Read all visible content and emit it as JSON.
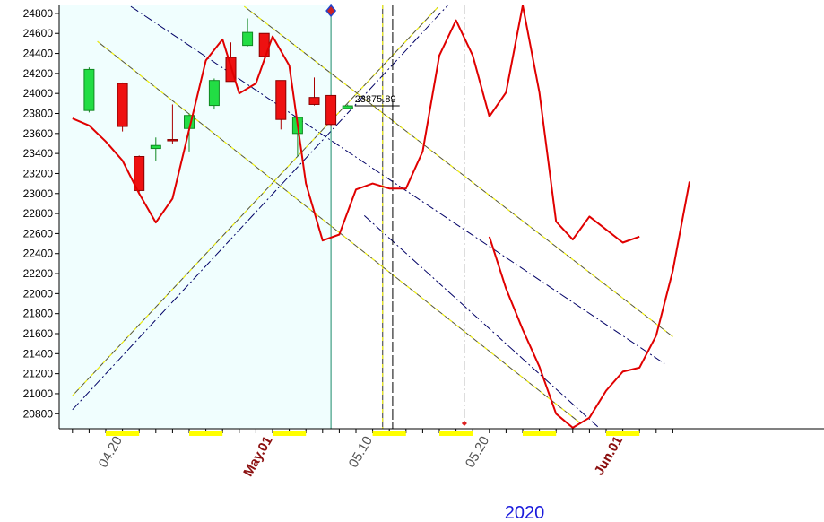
{
  "chart_data": {
    "type": "candlestick",
    "year_label": "2020",
    "last_price_label": "23875.89",
    "ylim": [
      20650,
      24880
    ],
    "y_ticks": [
      24800,
      24600,
      24400,
      24200,
      24000,
      23800,
      23600,
      23400,
      23200,
      23000,
      22800,
      22600,
      22400,
      22200,
      22000,
      21800,
      21600,
      21400,
      21200,
      21000,
      20800
    ],
    "x_ticks": [
      {
        "label": "04.20",
        "i": 1,
        "style": "normal"
      },
      {
        "label": "May.01",
        "i": 10,
        "style": "month"
      },
      {
        "label": "05.10",
        "i": 16,
        "style": "normal"
      },
      {
        "label": "05.20",
        "i": 23,
        "style": "normal"
      },
      {
        "label": "Jun.01",
        "i": 31,
        "style": "month"
      }
    ],
    "highlighted_days": [
      1,
      6,
      11,
      17,
      21,
      26,
      31
    ],
    "shaded_region_end_i": 13.5,
    "candles": [
      {
        "i": -1,
        "open": 23830,
        "high": 24260,
        "low": 23810,
        "close": 24240
      },
      {
        "i": 1,
        "open": 24100,
        "high": 24110,
        "low": 23620,
        "close": 23670
      },
      {
        "i": 2,
        "open": 23370,
        "high": 23380,
        "low": 23010,
        "close": 23030
      },
      {
        "i": 3,
        "open": 23450,
        "high": 23560,
        "low": 23330,
        "close": 23480
      },
      {
        "i": 4,
        "open": 23540,
        "high": 23890,
        "low": 23500,
        "close": 23530
      },
      {
        "i": 5,
        "open": 23650,
        "high": 23800,
        "low": 23420,
        "close": 23780
      },
      {
        "i": 6.5,
        "open": 23880,
        "high": 24150,
        "low": 23840,
        "close": 24130
      },
      {
        "i": 7.5,
        "open": 24360,
        "high": 24510,
        "low": 24120,
        "close": 24120
      },
      {
        "i": 8.5,
        "open": 24480,
        "high": 24750,
        "low": 24470,
        "close": 24610
      },
      {
        "i": 9.5,
        "open": 24600,
        "high": 24600,
        "low": 24360,
        "close": 24370
      },
      {
        "i": 10.5,
        "open": 24130,
        "high": 24130,
        "low": 23640,
        "close": 23740
      },
      {
        "i": 11.5,
        "open": 23600,
        "high": 23760,
        "low": 23370,
        "close": 23760
      },
      {
        "i": 12.5,
        "open": 23960,
        "high": 24160,
        "low": 23880,
        "close": 23890
      },
      {
        "i": 13.5,
        "open": 23980,
        "high": 23980,
        "low": 23680,
        "close": 23690
      },
      {
        "i": 14.5,
        "open": 23850,
        "high": 23890,
        "low": 23850,
        "close": 23876
      }
    ],
    "forecast_line": {
      "color": "#e00000",
      "x": [
        -2,
        -1,
        0,
        1,
        2,
        3,
        4,
        5,
        6,
        7,
        8,
        9,
        10,
        11,
        12,
        13,
        14,
        15,
        16,
        17,
        18,
        19,
        20,
        21,
        22,
        23,
        24,
        25,
        26,
        27,
        28,
        29,
        30,
        31,
        32
      ],
      "y": [
        23750,
        23680,
        23520,
        23330,
        23000,
        22710,
        22950,
        23640,
        24330,
        24540,
        24000,
        24100,
        24570,
        24280,
        23100,
        22530,
        22590,
        23040,
        23100,
        23050,
        23050,
        23420,
        24380,
        24730,
        24380,
        23770,
        24010,
        24880,
        24010,
        22720,
        22540,
        22770,
        22640,
        22510,
        22570
      ]
    },
    "forecast_line_tail": {
      "x": [
        23,
        24,
        25,
        26,
        27,
        28,
        29,
        30,
        31,
        32,
        33
      ],
      "y": [
        22570,
        22050,
        21640,
        21270,
        20800,
        20660,
        20760,
        21030,
        21220,
        21260,
        21580
      ]
    },
    "forecast_line_end": {
      "x": [
        33,
        34,
        35
      ],
      "y": [
        21580,
        22230,
        23120
      ]
    },
    "trend_lines": [
      {
        "style": "navy-dash",
        "p1": [
          -2,
          20840
        ],
        "p2": [
          20.5,
          24880
        ]
      },
      {
        "style": "navy-dash",
        "p1": [
          1.5,
          24870
        ],
        "p2": [
          33.5,
          21300
        ]
      },
      {
        "style": "navy-dash",
        "p1": [
          15.5,
          22780
        ],
        "p2": [
          29.5,
          20670
        ]
      },
      {
        "style": "yellow-dash",
        "p1": [
          -2,
          20980
        ],
        "p2": [
          19.9,
          24860
        ]
      },
      {
        "style": "yellow-dash",
        "p1": [
          8.3,
          24870
        ],
        "p2": [
          34,
          21570
        ]
      },
      {
        "style": "yellow-dash",
        "p1": [
          -0.5,
          24520
        ],
        "p2": [
          28.5,
          20700
        ]
      }
    ],
    "vertical_markers": [
      {
        "i": 13.5,
        "style": "teal-solid"
      },
      {
        "i": 16.6,
        "style": "yellow-dash"
      },
      {
        "i": 17.2,
        "style": "black-dash"
      },
      {
        "i": 21.5,
        "style": "gray-dash"
      }
    ],
    "colors": {
      "up": "#22dd44",
      "down": "#ee1111",
      "shade": "#f0fefe",
      "axis": "#000000",
      "month_label": "#8b1010",
      "day_label": "#555555",
      "year_label": "#1a1adc",
      "highlight": "#ffff00"
    }
  }
}
